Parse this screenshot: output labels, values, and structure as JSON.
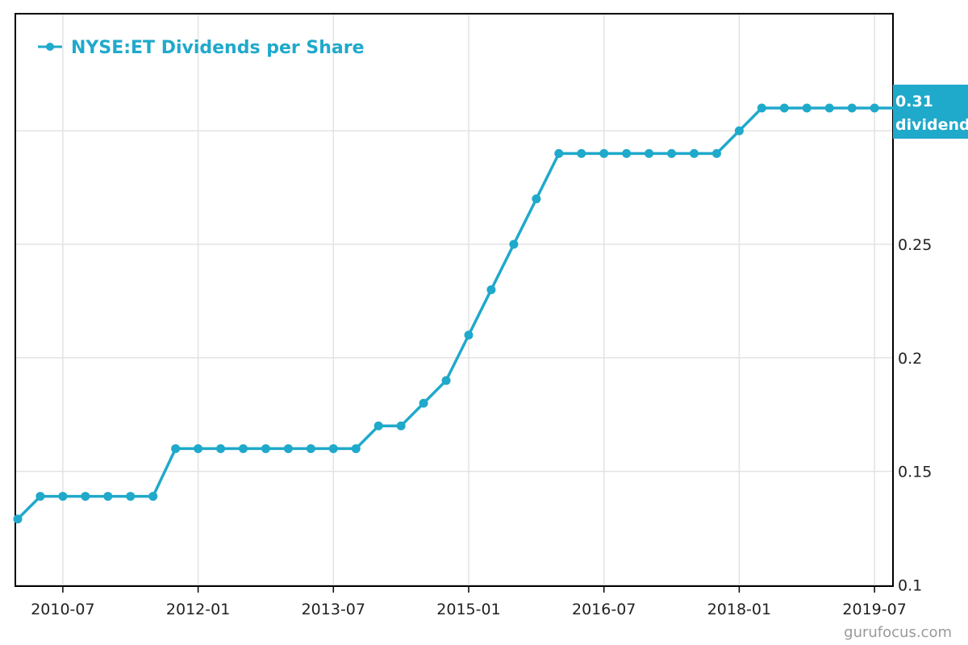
{
  "chart_data": {
    "type": "line",
    "title": "",
    "xlabel": "",
    "ylabel": "",
    "x_tick_labels": [
      "2010-07",
      "2012-01",
      "2013-07",
      "2015-01",
      "2016-07",
      "2018-01",
      "2019-07"
    ],
    "y_ticks": [
      0.1,
      0.15,
      0.2,
      0.25
    ],
    "y_tick_labels": [
      "0.1",
      "0.15",
      "0.2",
      "0.25"
    ],
    "ylim": [
      0.1,
      0.35
    ],
    "grid": true,
    "legend_position": "top-left",
    "series": [
      {
        "name": "NYSE:ET Dividends per Share",
        "color": "#1fa9cb",
        "values": [
          0.129,
          0.139,
          0.139,
          0.139,
          0.139,
          0.139,
          0.139,
          0.16,
          0.16,
          0.16,
          0.16,
          0.16,
          0.16,
          0.16,
          0.16,
          0.16,
          0.17,
          0.17,
          0.18,
          0.19,
          0.21,
          0.23,
          0.25,
          0.27,
          0.29,
          0.29,
          0.29,
          0.29,
          0.29,
          0.29,
          0.29,
          0.29,
          0.3,
          0.31,
          0.31,
          0.31,
          0.31,
          0.31,
          0.31,
          0.31,
          0.31
        ]
      }
    ],
    "last_value_badge": {
      "value": "0.31",
      "label": "dividend"
    }
  },
  "watermark": "gurufocus.com"
}
